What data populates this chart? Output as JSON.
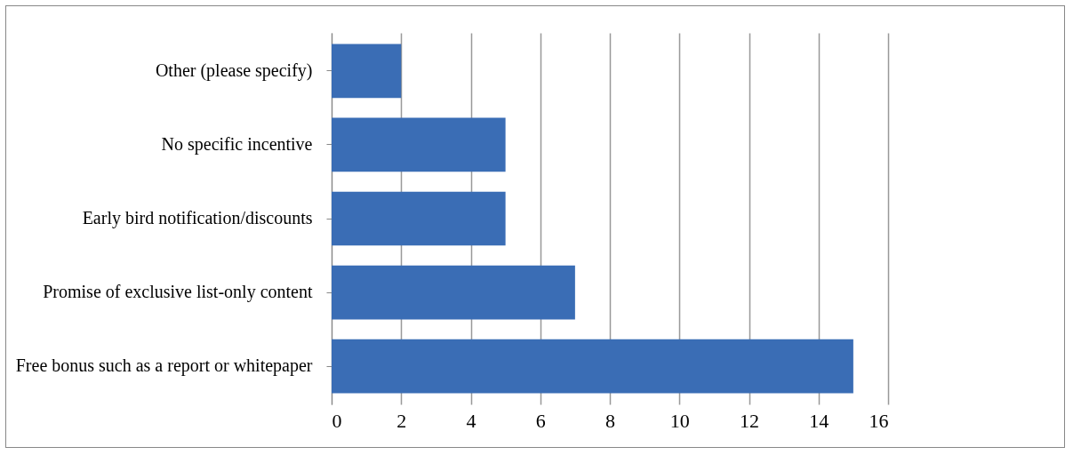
{
  "chart_data": {
    "type": "bar",
    "orientation": "horizontal",
    "categories": [
      "Other (please specify)",
      "No specific incentive",
      "Early bird notification/discounts",
      "Promise of exclusive list-only content",
      "Free bonus such as a report or whitepaper"
    ],
    "values": [
      2,
      5,
      5,
      7,
      15
    ],
    "color": "#3a6db5",
    "xlim": [
      0,
      16
    ],
    "xticks": [
      0,
      2,
      4,
      6,
      8,
      10,
      12,
      14,
      16
    ],
    "grid": "x"
  }
}
